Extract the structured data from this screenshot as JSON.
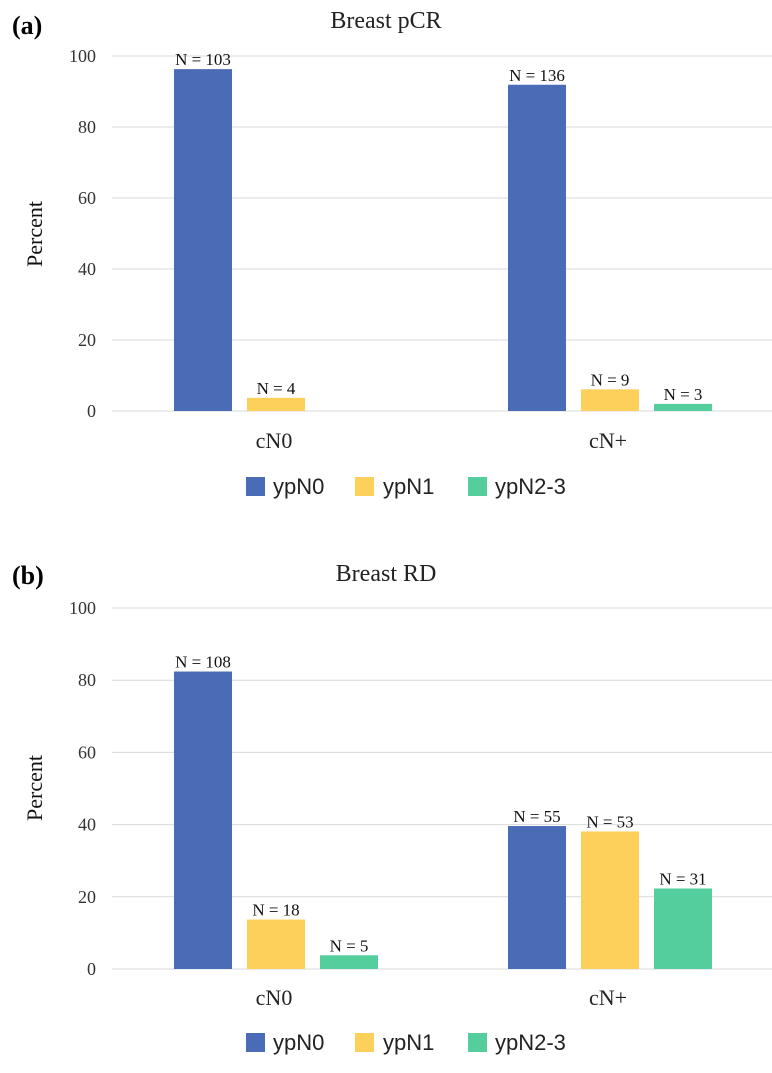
{
  "series_colors": {
    "ypN0": "#4a6bb5",
    "ypN1": "#fcd05a",
    "ypN2-3": "#55ce9e"
  },
  "chart_data": [
    {
      "panel": "(a)",
      "type": "bar",
      "title": "Breast pCR",
      "ylabel": "Percent",
      "xlabel": "",
      "ylim": [
        0,
        100
      ],
      "yticks": [
        "0",
        "20",
        "40",
        "60",
        "80",
        "100"
      ],
      "grid": true,
      "legend": "bottom",
      "categories": [
        "cN0",
        "cN+"
      ],
      "series": [
        {
          "name": "ypN0",
          "values": [
            96.3,
            91.9
          ],
          "labels": [
            "N = 103",
            "N = 136"
          ]
        },
        {
          "name": "ypN1",
          "values": [
            3.7,
            6.1
          ],
          "labels": [
            "N = 4",
            "N = 9"
          ]
        },
        {
          "name": "ypN2-3",
          "values": [
            null,
            2.0
          ],
          "labels": [
            null,
            "N = 3"
          ]
        }
      ]
    },
    {
      "panel": "(b)",
      "type": "bar",
      "title": "Breast RD",
      "ylabel": "Percent",
      "xlabel": "",
      "ylim": [
        0,
        100
      ],
      "yticks": [
        "0",
        "20",
        "40",
        "60",
        "80",
        "100"
      ],
      "grid": true,
      "legend": "bottom",
      "categories": [
        "cN0",
        "cN+"
      ],
      "series": [
        {
          "name": "ypN0",
          "values": [
            82.4,
            39.6
          ],
          "labels": [
            "N = 108",
            "N = 55"
          ]
        },
        {
          "name": "ypN1",
          "values": [
            13.7,
            38.1
          ],
          "labels": [
            "N = 18",
            "N = 53"
          ]
        },
        {
          "name": "ypN2-3",
          "values": [
            3.8,
            22.3
          ],
          "labels": [
            "N = 5",
            "N = 31"
          ]
        }
      ]
    }
  ]
}
